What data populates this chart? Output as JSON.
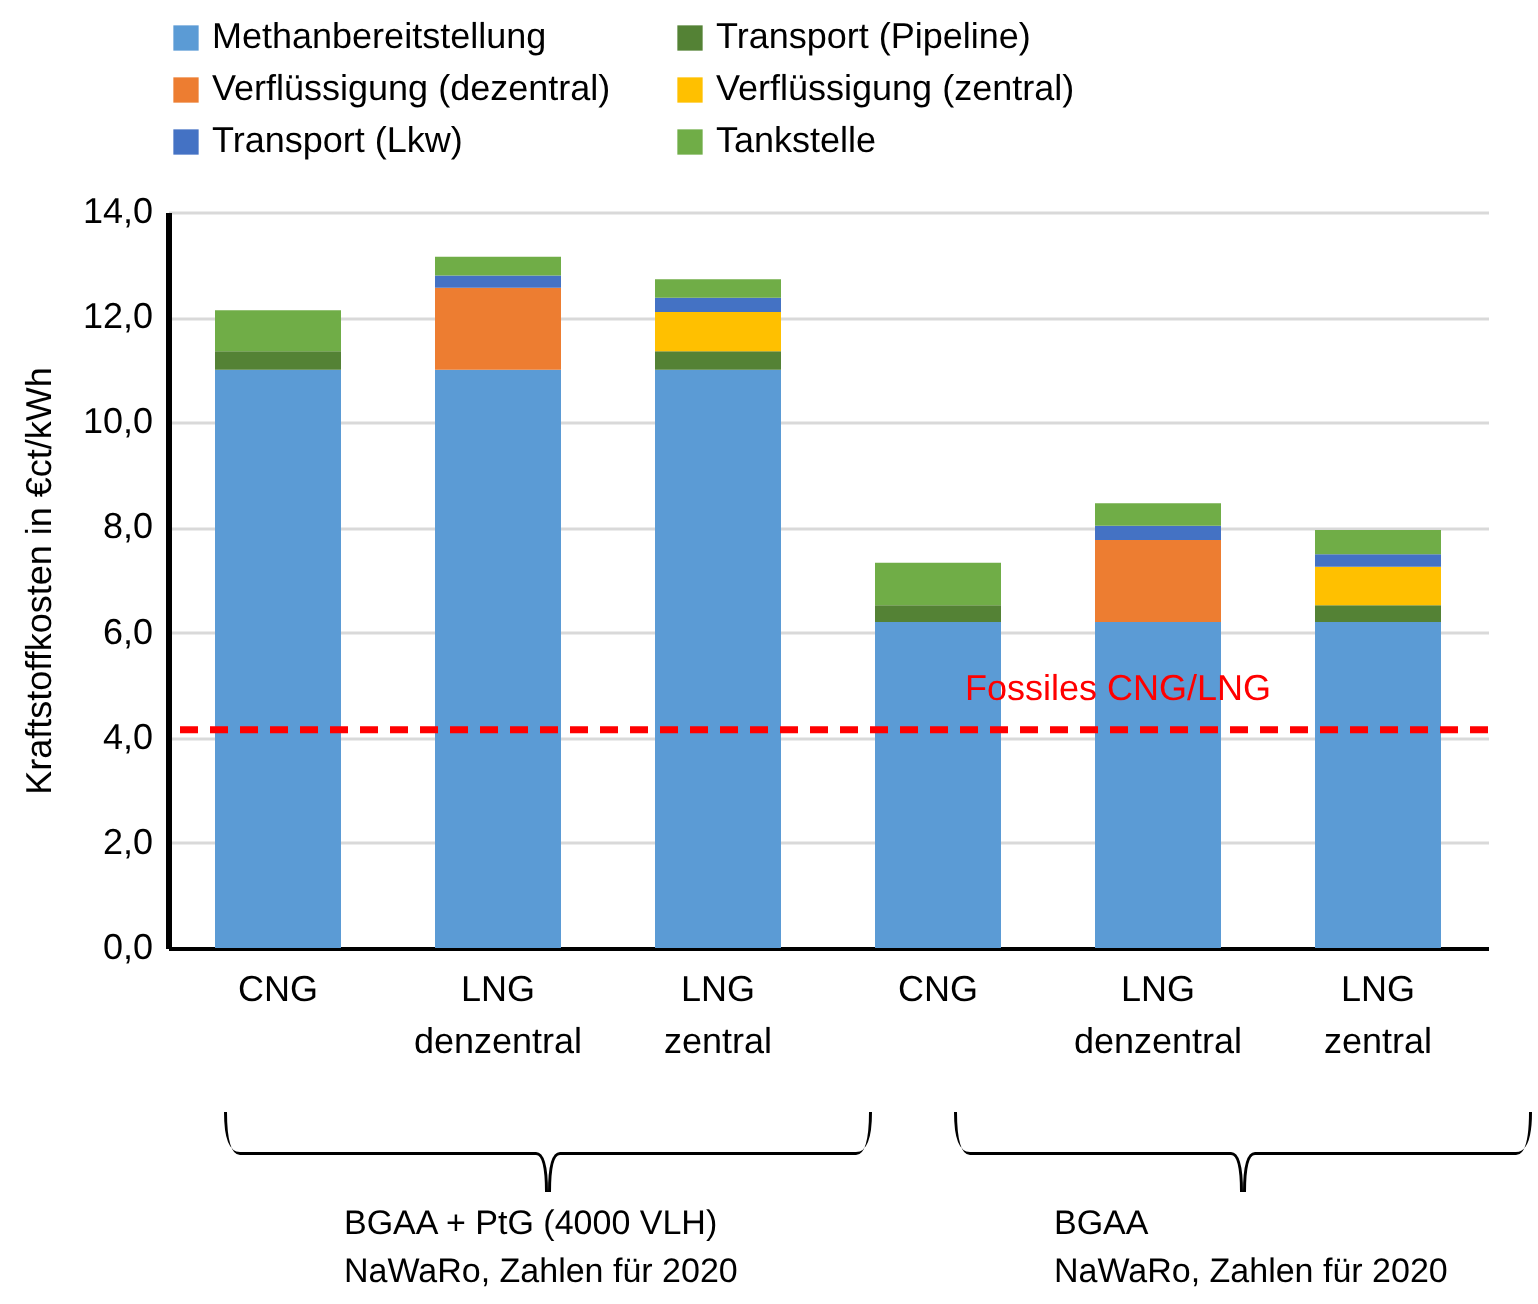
{
  "chart_data": {
    "type": "bar",
    "stacked": true,
    "categories": [
      "CNG",
      "LNG\ndenzentral",
      "LNG\nzentral",
      "CNG",
      "LNG\ndenzentral",
      "LNG\nzentral"
    ],
    "ylabel": "Kraftstoffkosten in €ct/kWh",
    "ylim": [
      0,
      14
    ],
    "yticks": [
      {
        "value": 0,
        "label": "0,0"
      },
      {
        "value": 2,
        "label": "2,0"
      },
      {
        "value": 4,
        "label": "4,0"
      },
      {
        "value": 6,
        "label": "6,0"
      },
      {
        "value": 8,
        "label": "8,0"
      },
      {
        "value": 10,
        "label": "10,0"
      },
      {
        "value": 12,
        "label": "12,0"
      },
      {
        "value": 14,
        "label": "14,0"
      }
    ],
    "grid": "y",
    "legend": "top",
    "series": [
      {
        "name": "Methanbereitstellung",
        "color": "#5b9bd5",
        "values": [
          11.0,
          11.0,
          11.0,
          6.2,
          6.2,
          6.2
        ]
      },
      {
        "name": "Transport (Pipeline)",
        "color": "#548235",
        "values": [
          0.35,
          null,
          0.35,
          0.32,
          null,
          0.32
        ]
      },
      {
        "name": "Verflüssigung (dezentral)",
        "color": "#ed7d31",
        "values": [
          null,
          1.56,
          null,
          null,
          1.56,
          null
        ]
      },
      {
        "name": "Verflüssigung (zentral)",
        "color": "#ffc000",
        "values": [
          null,
          null,
          0.75,
          null,
          null,
          0.73
        ]
      },
      {
        "name": "Transport (Lkw)",
        "color": "#4472c4",
        "values": [
          null,
          0.23,
          0.27,
          null,
          0.27,
          0.24
        ]
      },
      {
        "name": "Tankstelle",
        "color": "#70ad47",
        "values": [
          0.78,
          0.36,
          0.35,
          0.81,
          0.43,
          0.46
        ]
      }
    ],
    "ref_lines": [
      {
        "axis": "y",
        "value": 4.15,
        "label": "Fossiles CNG/LNG",
        "color": "#ff0000",
        "line_style": "dashed"
      }
    ],
    "annotations": [
      "BGAA + PtG (4000 VLH)\nNaWaRo, Zahlen für 2020",
      "BGAA\nNaWaRo, Zahlen für 2020"
    ]
  }
}
